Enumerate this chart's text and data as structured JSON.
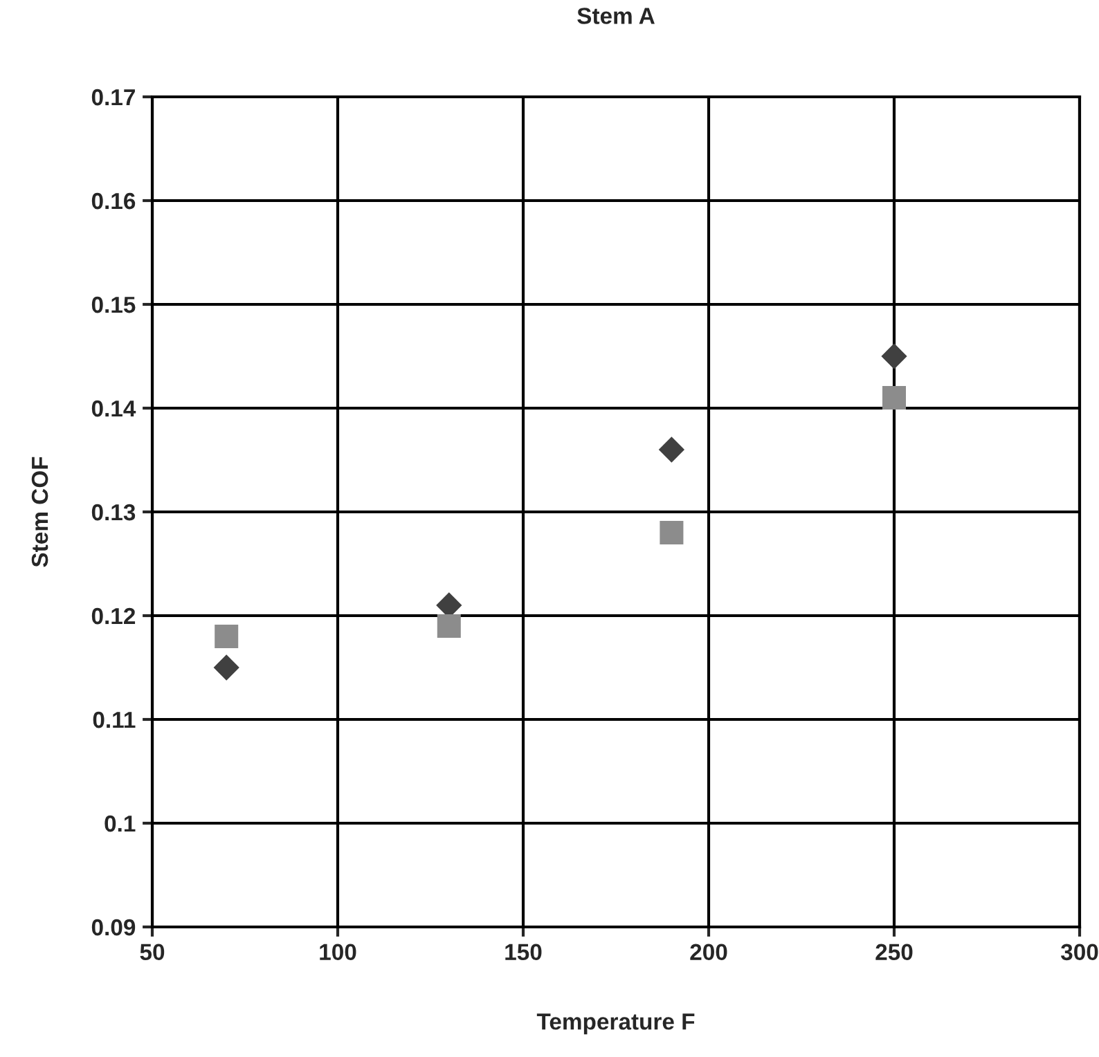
{
  "chart_data": {
    "type": "scatter",
    "title": "Stem A",
    "xlabel": "Temperature F",
    "ylabel": "Stem COF",
    "x": [
      70,
      130,
      190,
      250
    ],
    "series": [
      {
        "color": "#404040",
        "marker": "diamond",
        "values": [
          0.115,
          0.121,
          0.136,
          0.145
        ]
      },
      {
        "color": "#8c8c8c",
        "marker": "square",
        "values": [
          0.118,
          0.119,
          0.128,
          0.141
        ]
      }
    ],
    "xlim": [
      50,
      300
    ],
    "xticks": [
      50,
      100,
      150,
      200,
      250,
      300
    ],
    "ylim": [
      0.09,
      0.17
    ],
    "yticks": [
      0.09,
      0.1,
      0.11,
      0.12,
      0.13,
      0.14,
      0.15,
      0.16,
      0.17
    ],
    "grid": true
  }
}
